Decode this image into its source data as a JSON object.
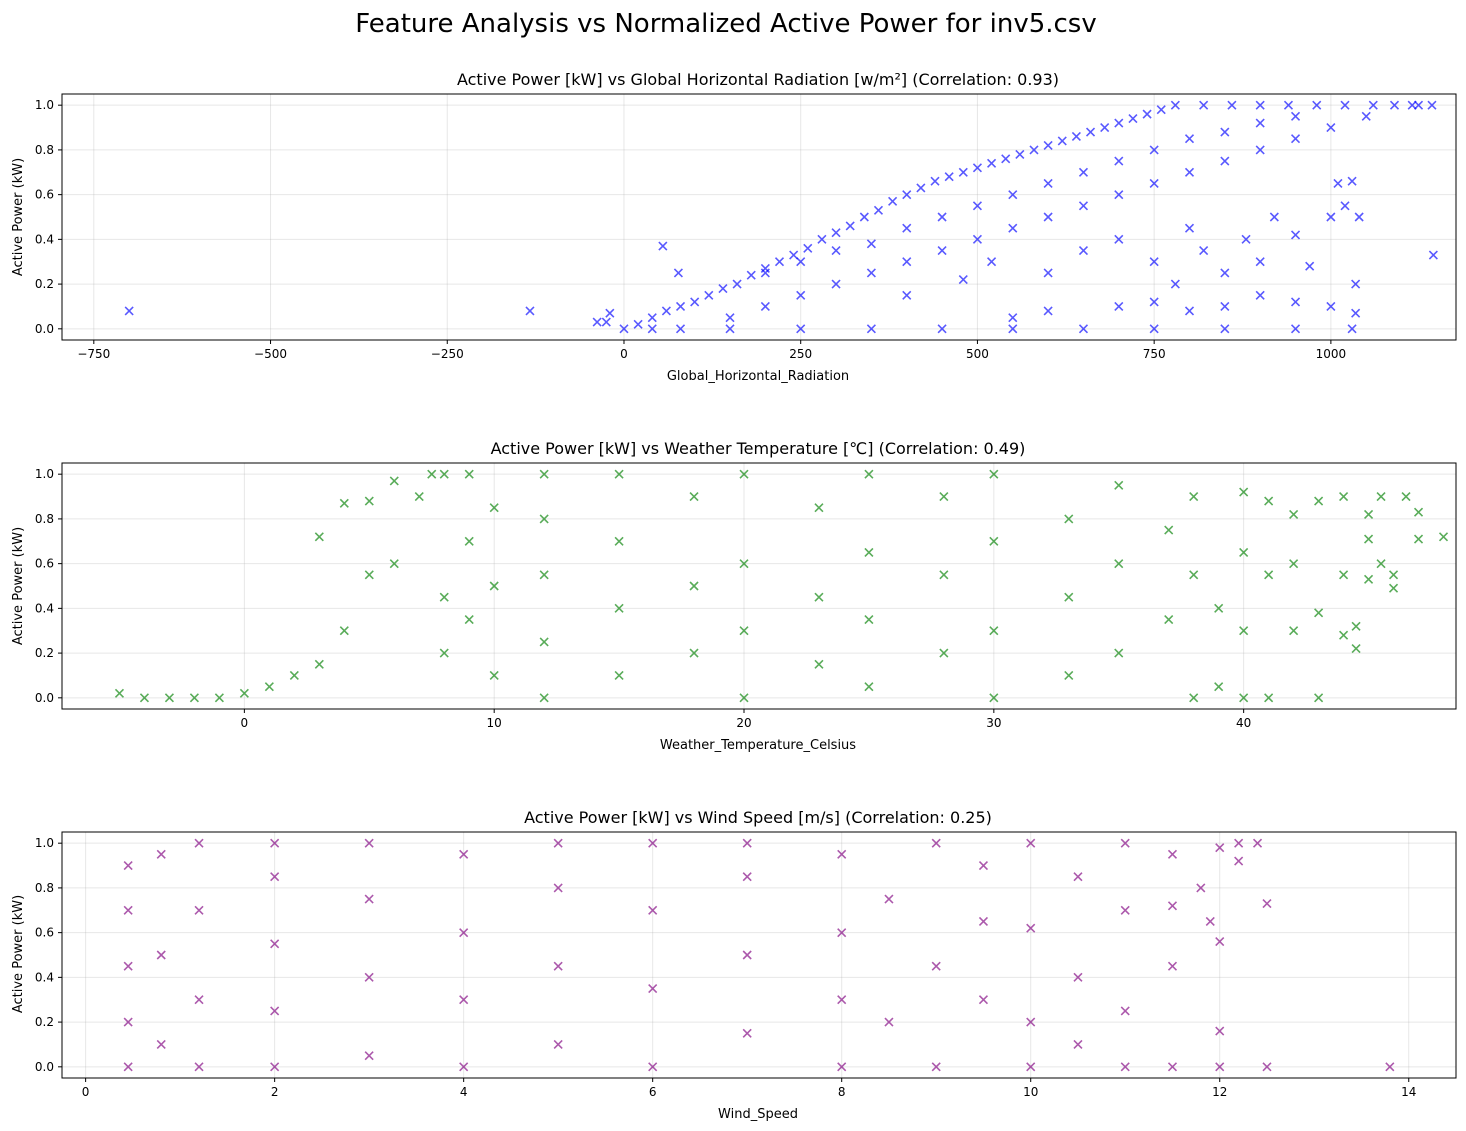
{
  "figure": {
    "title": "Feature Analysis vs Normalized Active Power for inv5.csv"
  },
  "chart_data": [
    {
      "type": "scatter",
      "title": "Active Power [kW] vs Global Horizontal Radiation [w/m²] (Correlation: 0.93)",
      "xlabel": "Global_Horizontal_Radiation",
      "ylabel": "Active Power (kW)",
      "xlim": [
        -795,
        1177
      ],
      "ylim": [
        -0.05,
        1.05
      ],
      "xticks": [
        -750,
        -500,
        -250,
        0,
        250,
        500,
        750,
        1000
      ],
      "yticks": [
        0.0,
        0.2,
        0.4,
        0.6,
        0.8,
        1.0
      ],
      "grid": true,
      "marker": "x",
      "color": "#0000ff",
      "alpha": 0.65,
      "points": [
        [
          -700,
          0.08
        ],
        [
          -133,
          0.08
        ],
        [
          -38,
          0.03
        ],
        [
          -25,
          0.03
        ],
        [
          -20,
          0.07
        ],
        [
          55,
          0.37
        ],
        [
          77,
          0.25
        ],
        [
          1115,
          1.0
        ],
        [
          1124,
          1.0
        ],
        [
          1143,
          1.0
        ],
        [
          1010,
          0.65
        ],
        [
          1030,
          0.66
        ],
        [
          1040,
          0.5
        ],
        [
          1145,
          0.33
        ],
        [
          0,
          0.0
        ],
        [
          40,
          0.0
        ],
        [
          80,
          0.0
        ],
        [
          150,
          0.0
        ],
        [
          250,
          0.0
        ],
        [
          350,
          0.0
        ],
        [
          450,
          0.0
        ],
        [
          550,
          0.0
        ],
        [
          650,
          0.0
        ],
        [
          750,
          0.0
        ],
        [
          850,
          0.0
        ],
        [
          950,
          0.0
        ],
        [
          1030,
          0.0
        ],
        [
          20,
          0.02
        ],
        [
          40,
          0.05
        ],
        [
          60,
          0.08
        ],
        [
          80,
          0.1
        ],
        [
          100,
          0.12
        ],
        [
          120,
          0.15
        ],
        [
          140,
          0.18
        ],
        [
          160,
          0.2
        ],
        [
          180,
          0.24
        ],
        [
          200,
          0.27
        ],
        [
          220,
          0.3
        ],
        [
          240,
          0.33
        ],
        [
          260,
          0.36
        ],
        [
          280,
          0.4
        ],
        [
          300,
          0.43
        ],
        [
          320,
          0.46
        ],
        [
          340,
          0.5
        ],
        [
          360,
          0.53
        ],
        [
          380,
          0.57
        ],
        [
          400,
          0.6
        ],
        [
          420,
          0.63
        ],
        [
          440,
          0.66
        ],
        [
          460,
          0.68
        ],
        [
          480,
          0.7
        ],
        [
          500,
          0.72
        ],
        [
          520,
          0.74
        ],
        [
          540,
          0.76
        ],
        [
          560,
          0.78
        ],
        [
          580,
          0.8
        ],
        [
          600,
          0.82
        ],
        [
          620,
          0.84
        ],
        [
          640,
          0.86
        ],
        [
          660,
          0.88
        ],
        [
          680,
          0.9
        ],
        [
          700,
          0.92
        ],
        [
          720,
          0.94
        ],
        [
          740,
          0.96
        ],
        [
          760,
          0.98
        ],
        [
          780,
          1.0
        ],
        [
          820,
          1.0
        ],
        [
          860,
          1.0
        ],
        [
          900,
          1.0
        ],
        [
          940,
          1.0
        ],
        [
          980,
          1.0
        ],
        [
          1020,
          1.0
        ],
        [
          1060,
          1.0
        ],
        [
          1090,
          1.0
        ],
        [
          150,
          0.05
        ],
        [
          200,
          0.1
        ],
        [
          250,
          0.15
        ],
        [
          300,
          0.2
        ],
        [
          350,
          0.25
        ],
        [
          400,
          0.3
        ],
        [
          450,
          0.35
        ],
        [
          500,
          0.4
        ],
        [
          550,
          0.45
        ],
        [
          600,
          0.5
        ],
        [
          650,
          0.55
        ],
        [
          700,
          0.6
        ],
        [
          750,
          0.65
        ],
        [
          800,
          0.7
        ],
        [
          850,
          0.75
        ],
        [
          900,
          0.8
        ],
        [
          950,
          0.85
        ],
        [
          1000,
          0.9
        ],
        [
          1050,
          0.95
        ],
        [
          200,
          0.25
        ],
        [
          250,
          0.3
        ],
        [
          300,
          0.35
        ],
        [
          350,
          0.38
        ],
        [
          400,
          0.45
        ],
        [
          450,
          0.5
        ],
        [
          500,
          0.55
        ],
        [
          550,
          0.6
        ],
        [
          600,
          0.65
        ],
        [
          650,
          0.7
        ],
        [
          700,
          0.75
        ],
        [
          750,
          0.8
        ],
        [
          800,
          0.85
        ],
        [
          850,
          0.88
        ],
        [
          900,
          0.92
        ],
        [
          950,
          0.95
        ],
        [
          400,
          0.15
        ],
        [
          480,
          0.22
        ],
        [
          520,
          0.3
        ],
        [
          600,
          0.25
        ],
        [
          650,
          0.35
        ],
        [
          700,
          0.4
        ],
        [
          750,
          0.3
        ],
        [
          780,
          0.2
        ],
        [
          800,
          0.45
        ],
        [
          820,
          0.35
        ],
        [
          850,
          0.25
        ],
        [
          880,
          0.4
        ],
        [
          900,
          0.3
        ],
        [
          920,
          0.5
        ],
        [
          950,
          0.42
        ],
        [
          970,
          0.28
        ],
        [
          1000,
          0.5
        ],
        [
          1020,
          0.55
        ],
        [
          1035,
          0.2
        ],
        [
          550,
          0.05
        ],
        [
          600,
          0.08
        ],
        [
          700,
          0.1
        ],
        [
          750,
          0.12
        ],
        [
          800,
          0.08
        ],
        [
          850,
          0.1
        ],
        [
          900,
          0.15
        ],
        [
          950,
          0.12
        ],
        [
          1000,
          0.1
        ],
        [
          1035,
          0.07
        ]
      ]
    },
    {
      "type": "scatter",
      "title": "Active Power [kW] vs Weather Temperature [℃] (Correlation: 0.49)",
      "xlabel": "Weather_Temperature_Celsius",
      "ylabel": "Active Power (kW)",
      "xlim": [
        -7.3,
        48.5
      ],
      "ylim": [
        -0.05,
        1.05
      ],
      "xticks": [
        0,
        10,
        20,
        30,
        40
      ],
      "yticks": [
        0.0,
        0.2,
        0.4,
        0.6,
        0.8,
        1.0
      ],
      "grid": true,
      "marker": "x",
      "color": "#008000",
      "alpha": 0.65,
      "points": [
        [
          -5,
          0.02
        ],
        [
          -4,
          0.0
        ],
        [
          -3,
          0.0
        ],
        [
          -2,
          0.0
        ],
        [
          -1,
          0.0
        ],
        [
          0,
          0.02
        ],
        [
          1,
          0.05
        ],
        [
          2,
          0.1
        ],
        [
          3,
          0.15
        ],
        [
          3,
          0.72
        ],
        [
          4,
          0.3
        ],
        [
          4,
          0.87
        ],
        [
          5,
          0.55
        ],
        [
          5,
          0.88
        ],
        [
          6,
          0.6
        ],
        [
          6,
          0.97
        ],
        [
          7,
          0.9
        ],
        [
          7.5,
          1.0
        ],
        [
          8,
          1.0
        ],
        [
          9,
          1.0
        ],
        [
          8,
          0.2
        ],
        [
          8,
          0.45
        ],
        [
          9,
          0.35
        ],
        [
          9,
          0.7
        ],
        [
          10,
          0.1
        ],
        [
          10,
          0.5
        ],
        [
          10,
          0.85
        ],
        [
          12,
          0.0
        ],
        [
          12,
          0.25
        ],
        [
          12,
          0.55
        ],
        [
          12,
          0.8
        ],
        [
          12,
          1.0
        ],
        [
          15,
          0.1
        ],
        [
          15,
          0.4
        ],
        [
          15,
          0.7
        ],
        [
          15,
          1.0
        ],
        [
          18,
          0.2
        ],
        [
          18,
          0.5
        ],
        [
          18,
          0.9
        ],
        [
          20,
          0.0
        ],
        [
          20,
          0.3
        ],
        [
          20,
          0.6
        ],
        [
          20,
          1.0
        ],
        [
          23,
          0.15
        ],
        [
          23,
          0.45
        ],
        [
          23,
          0.85
        ],
        [
          25,
          0.05
        ],
        [
          25,
          0.35
        ],
        [
          25,
          0.65
        ],
        [
          25,
          1.0
        ],
        [
          28,
          0.2
        ],
        [
          28,
          0.55
        ],
        [
          28,
          0.9
        ],
        [
          30,
          0.0
        ],
        [
          30,
          0.3
        ],
        [
          30,
          0.7
        ],
        [
          30,
          1.0
        ],
        [
          33,
          0.1
        ],
        [
          33,
          0.45
        ],
        [
          33,
          0.8
        ],
        [
          35,
          0.2
        ],
        [
          35,
          0.6
        ],
        [
          35,
          0.95
        ],
        [
          37,
          0.35
        ],
        [
          37,
          0.75
        ],
        [
          38,
          0.0
        ],
        [
          38,
          0.55
        ],
        [
          38,
          0.9
        ],
        [
          39,
          0.05
        ],
        [
          39,
          0.4
        ],
        [
          40,
          0.0
        ],
        [
          40,
          0.3
        ],
        [
          40,
          0.65
        ],
        [
          40,
          0.92
        ],
        [
          41,
          0.0
        ],
        [
          41,
          0.55
        ],
        [
          41,
          0.88
        ],
        [
          42,
          0.3
        ],
        [
          42,
          0.6
        ],
        [
          42,
          0.82
        ],
        [
          43,
          0.0
        ],
        [
          43,
          0.38
        ],
        [
          43,
          0.88
        ],
        [
          44,
          0.28
        ],
        [
          44,
          0.55
        ],
        [
          44,
          0.9
        ],
        [
          44.5,
          0.22
        ],
        [
          44.5,
          0.32
        ],
        [
          45,
          0.53
        ],
        [
          45,
          0.71
        ],
        [
          45,
          0.82
        ],
        [
          45.5,
          0.6
        ],
        [
          45.5,
          0.9
        ],
        [
          46,
          0.49
        ],
        [
          46,
          0.55
        ],
        [
          46.5,
          0.9
        ],
        [
          47,
          0.71
        ],
        [
          47,
          0.83
        ],
        [
          48,
          0.72
        ]
      ]
    },
    {
      "type": "scatter",
      "title": "Active Power [kW] vs Wind Speed [m/s] (Correlation: 0.25)",
      "xlabel": "Wind_Speed",
      "ylabel": "Active Power (kW)",
      "xlim": [
        -0.25,
        14.5
      ],
      "ylim": [
        -0.05,
        1.05
      ],
      "xticks": [
        0,
        2,
        4,
        6,
        8,
        10,
        12,
        14
      ],
      "yticks": [
        0.0,
        0.2,
        0.4,
        0.6,
        0.8,
        1.0
      ],
      "grid": true,
      "marker": "x",
      "color": "#800080",
      "alpha": 0.65,
      "points": [
        [
          0.45,
          0.0
        ],
        [
          0.45,
          0.2
        ],
        [
          0.45,
          0.45
        ],
        [
          0.45,
          0.7
        ],
        [
          0.45,
          0.9
        ],
        [
          0.8,
          0.1
        ],
        [
          0.8,
          0.5
        ],
        [
          0.8,
          0.95
        ],
        [
          1.2,
          0.0
        ],
        [
          1.2,
          0.3
        ],
        [
          1.2,
          0.7
        ],
        [
          1.2,
          1.0
        ],
        [
          2,
          0.0
        ],
        [
          2,
          0.25
        ],
        [
          2,
          0.55
        ],
        [
          2,
          0.85
        ],
        [
          2,
          1.0
        ],
        [
          3,
          0.05
        ],
        [
          3,
          0.4
        ],
        [
          3,
          0.75
        ],
        [
          3,
          1.0
        ],
        [
          4,
          0.0
        ],
        [
          4,
          0.3
        ],
        [
          4,
          0.6
        ],
        [
          4,
          0.95
        ],
        [
          5,
          0.1
        ],
        [
          5,
          0.45
        ],
        [
          5,
          0.8
        ],
        [
          5,
          1.0
        ],
        [
          6,
          0.0
        ],
        [
          6,
          0.35
        ],
        [
          6,
          0.7
        ],
        [
          6,
          1.0
        ],
        [
          7,
          0.15
        ],
        [
          7,
          0.5
        ],
        [
          7,
          0.85
        ],
        [
          7,
          1.0
        ],
        [
          8,
          0.0
        ],
        [
          8,
          0.3
        ],
        [
          8,
          0.6
        ],
        [
          8,
          0.95
        ],
        [
          8.5,
          0.2
        ],
        [
          8.5,
          0.75
        ],
        [
          9,
          0.0
        ],
        [
          9,
          0.45
        ],
        [
          9,
          1.0
        ],
        [
          9.5,
          0.3
        ],
        [
          9.5,
          0.65
        ],
        [
          9.5,
          0.9
        ],
        [
          10,
          0.0
        ],
        [
          10,
          0.2
        ],
        [
          10,
          0.62
        ],
        [
          10,
          1.0
        ],
        [
          10.5,
          0.1
        ],
        [
          10.5,
          0.4
        ],
        [
          10.5,
          0.85
        ],
        [
          11,
          0.0
        ],
        [
          11,
          0.25
        ],
        [
          11,
          0.7
        ],
        [
          11,
          1.0
        ],
        [
          11.5,
          0.0
        ],
        [
          11.5,
          0.45
        ],
        [
          11.5,
          0.72
        ],
        [
          11.5,
          0.95
        ],
        [
          11.8,
          0.8
        ],
        [
          11.9,
          0.65
        ],
        [
          12,
          0.0
        ],
        [
          12,
          0.16
        ],
        [
          12,
          0.56
        ],
        [
          12,
          0.98
        ],
        [
          12.2,
          1.0
        ],
        [
          12.2,
          0.92
        ],
        [
          12.5,
          0.0
        ],
        [
          12.5,
          0.73
        ],
        [
          12.4,
          1.0
        ],
        [
          13.8,
          0.0
        ]
      ]
    }
  ]
}
